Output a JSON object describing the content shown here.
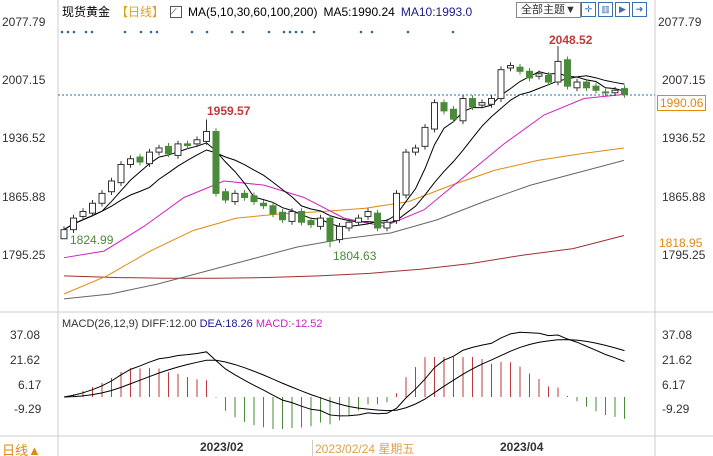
{
  "header": {
    "title": "现货黄金",
    "period": "【日线】",
    "ma_label": "MA(5,10,30,60,100,200)",
    "ma5": "MA5:1990.24",
    "ma10": "MA10:1993.0",
    "theme_button": "全部主题▼"
  },
  "price_axis": {
    "labels": [
      "2077.79",
      "2007.15",
      "1936.52",
      "1865.88",
      "1795.25"
    ],
    "current_tag": "1990.06",
    "ma_tag": "1818.95",
    "annotations": {
      "high1": "1959.57",
      "low1": "1824.99",
      "low2": "1804.63",
      "high2": "2048.52"
    }
  },
  "macd": {
    "label": "MACD(26,12,9)",
    "diff": "DIFF:12.00",
    "dea": "DEA:18.26",
    "macd": "MACD:-12.52",
    "axis": [
      "37.08",
      "21.62",
      "6.17",
      "-9.29"
    ]
  },
  "footer": {
    "period_button": "日线▲",
    "dates": [
      "2023/02",
      "2023/02/24 星期五",
      "2023/04"
    ]
  },
  "colors": {
    "up": "#c0393a",
    "down": "#4a8a3a",
    "ma5": "#000000",
    "ma10": "#000000",
    "ma30": "#d020c0",
    "ma60": "#e08a10",
    "ma100": "#666666",
    "ma200": "#a03030"
  },
  "chart_data": {
    "type": "candlestick",
    "price_range": [
      1740,
      2077.79
    ],
    "closes": [
      1826,
      1840,
      1848,
      1858,
      1870,
      1885,
      1905,
      1912,
      1908,
      1920,
      1925,
      1918,
      1930,
      1928,
      1935,
      1945,
      1870,
      1862,
      1870,
      1865,
      1860,
      1855,
      1845,
      1838,
      1848,
      1835,
      1832,
      1840,
      1812,
      1830,
      1835,
      1840,
      1848,
      1828,
      1835,
      1870,
      1920,
      1925,
      1950,
      1980,
      1970,
      1960,
      1985,
      1975,
      1980,
      1985,
      2020,
      2025,
      2018,
      2010,
      2015,
      2005,
      2030,
      2000,
      2005,
      1998,
      1995,
      1992,
      1995,
      1990
    ],
    "ma30": [
      1792,
      1800,
      1830,
      1865,
      1885,
      1880,
      1865,
      1840,
      1830,
      1850,
      1890,
      1930,
      1965,
      1985,
      1990
    ],
    "ma60": [
      1748,
      1770,
      1800,
      1825,
      1840,
      1845,
      1848,
      1852,
      1860,
      1880,
      1898,
      1910,
      1918,
      1925
    ],
    "ma100": [
      1742,
      1748,
      1760,
      1775,
      1790,
      1805,
      1815,
      1822,
      1838,
      1860,
      1880,
      1895,
      1910
    ],
    "ma200": [
      1770,
      1768,
      1767,
      1767,
      1768,
      1770,
      1773,
      1778,
      1785,
      1795,
      1803,
      1818.95
    ]
  }
}
